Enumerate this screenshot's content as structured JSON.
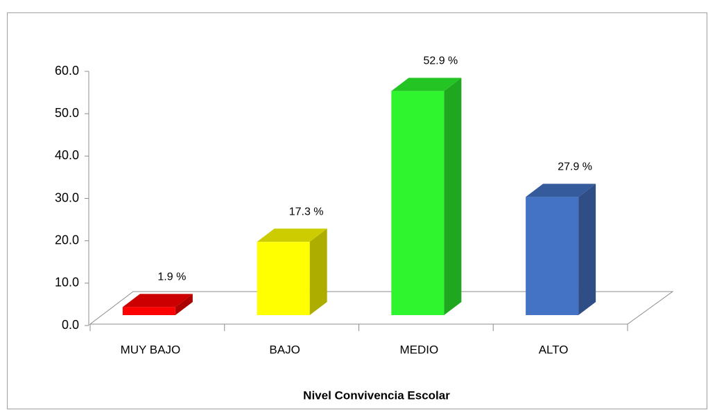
{
  "chart_data": {
    "type": "bar3d",
    "categories": [
      "MUY BAJO",
      "BAJO",
      "MEDIO",
      "ALTO"
    ],
    "values": [
      1.9,
      17.3,
      52.9,
      27.9
    ],
    "value_labels": [
      "1.9 %",
      "17.3 %",
      "52.9 %",
      "27.9 %"
    ],
    "colors": [
      "#ff0000",
      "#ffff00",
      "#2ef52e",
      "#4472c4"
    ],
    "x_label": "Nivel Convivencia Escolar",
    "ylim": [
      0,
      60
    ],
    "yticks": [
      {
        "value": 0,
        "label": "0.0"
      },
      {
        "value": 10,
        "label": "10.0"
      },
      {
        "value": 20,
        "label": "20.0"
      },
      {
        "value": 30,
        "label": "30.0"
      },
      {
        "value": 40,
        "label": "40.0"
      },
      {
        "value": 50,
        "label": "50.0"
      },
      {
        "value": 60,
        "label": "60.0"
      }
    ]
  }
}
